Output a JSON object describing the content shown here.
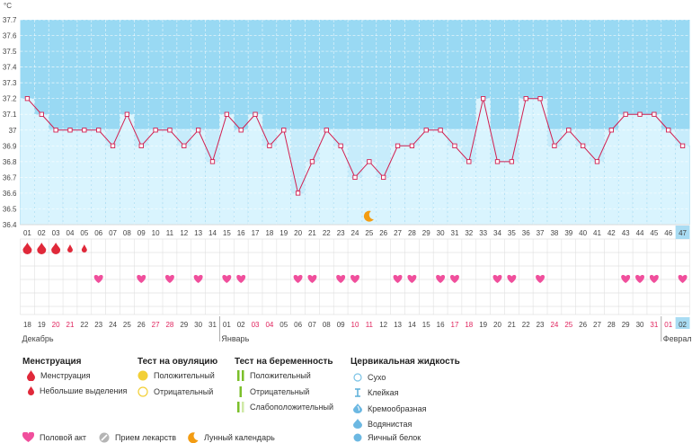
{
  "chart_data": {
    "type": "line",
    "yunit": "°C",
    "ylim": [
      36.4,
      37.7
    ],
    "yticks": [
      "36.4",
      "36.5",
      "36.6",
      "36.7",
      "36.8",
      "36.9",
      "37",
      "37.1",
      "37.2",
      "37.3",
      "37.4",
      "37.5",
      "37.6",
      "37.7"
    ],
    "cycle_days": [
      "01",
      "02",
      "03",
      "04",
      "05",
      "06",
      "07",
      "08",
      "09",
      "10",
      "11",
      "12",
      "13",
      "14",
      "15",
      "16",
      "17",
      "18",
      "19",
      "20",
      "21",
      "22",
      "23",
      "24",
      "25",
      "26",
      "27",
      "28",
      "29",
      "30",
      "31",
      "32",
      "33",
      "34",
      "35",
      "36",
      "37",
      "38",
      "39",
      "40",
      "41",
      "42",
      "43",
      "44",
      "45",
      "46",
      "47"
    ],
    "temperatures": [
      37.2,
      37.1,
      37.0,
      37.0,
      37.0,
      37.0,
      36.9,
      37.1,
      36.9,
      37.0,
      37.0,
      36.9,
      37.0,
      36.8,
      37.1,
      37.0,
      37.1,
      36.9,
      37.0,
      36.6,
      36.8,
      37.0,
      36.9,
      36.7,
      36.8,
      36.7,
      36.9,
      36.9,
      37.0,
      37.0,
      36.9,
      36.8,
      37.2,
      36.8,
      36.8,
      37.2,
      37.2,
      36.9,
      37.0,
      36.9,
      36.8,
      37.0,
      37.1,
      37.1,
      37.1,
      37.0,
      36.9
    ],
    "current_day_index": 46,
    "moon_day_index": 24,
    "menstruation_days": [
      {
        "day": 0,
        "type": "heavy"
      },
      {
        "day": 1,
        "type": "heavy"
      },
      {
        "day": 2,
        "type": "heavy"
      },
      {
        "day": 3,
        "type": "light"
      },
      {
        "day": 4,
        "type": "light"
      }
    ],
    "intercourse_days": [
      5,
      8,
      10,
      12,
      14,
      15,
      19,
      20,
      22,
      23,
      26,
      27,
      29,
      30,
      33,
      34,
      36,
      42,
      43,
      44,
      46
    ],
    "dates": [
      "18",
      "19",
      "20",
      "21",
      "22",
      "23",
      "24",
      "25",
      "26",
      "27",
      "28",
      "29",
      "30",
      "31",
      "01",
      "02",
      "03",
      "04",
      "05",
      "06",
      "07",
      "08",
      "09",
      "10",
      "11",
      "12",
      "13",
      "14",
      "15",
      "16",
      "17",
      "18",
      "19",
      "20",
      "21",
      "22",
      "23",
      "24",
      "25",
      "26",
      "27",
      "28",
      "29",
      "30",
      "31",
      "01",
      "02"
    ],
    "weekend_date_indices": [
      2,
      3,
      9,
      10,
      16,
      17,
      23,
      24,
      30,
      31,
      37,
      38,
      44,
      45
    ],
    "months": [
      {
        "label": "Декабрь",
        "start_index": 0
      },
      {
        "label": "Январь",
        "start_index": 14
      },
      {
        "label": "Февраль",
        "start_index": 45
      }
    ],
    "colors": {
      "high_band": "#99d9f3",
      "low_band": "#c7ecfb",
      "bar": "#d9f4fe",
      "bar_stroke": "#a8dcf2",
      "line": "#d21e4f",
      "blood": "#e0293a",
      "heart": "#f04f9c",
      "moon": "#f39c12",
      "grid": "#e1e1e1",
      "weekend": "#e0245e",
      "current_bg": "#a9dcf3"
    }
  },
  "legend": {
    "menstruation": {
      "title": "Менструация",
      "heavy": "Менструация",
      "light": "Небольшие выделения"
    },
    "ovulation_test": {
      "title": "Тест на овуляцию",
      "positive": "Положительный",
      "negative": "Отрицательный"
    },
    "pregnancy_test": {
      "title": "Тест на беременность",
      "positive": "Положительный",
      "negative": "Отрицательный",
      "weak": "Слабоположительный"
    },
    "cervical_fluid": {
      "title": "Цервикальная жидкость",
      "dry": "Сухо",
      "sticky": "Клейкая",
      "creamy": "Кремообразная",
      "watery": "Водянистая",
      "egg_white": "Яичный белок"
    },
    "bottom": {
      "intercourse": "Половой акт",
      "medication": "Прием лекарств",
      "lunar": "Лунный календарь"
    }
  }
}
